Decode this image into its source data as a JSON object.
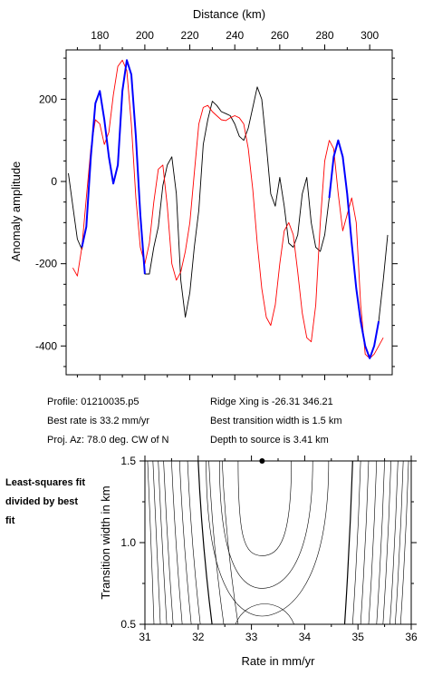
{
  "chart_data": [
    {
      "type": "line",
      "xlabel": "Distance (km)",
      "ylabel": "Anomaly amplitude",
      "xlim": [
        165,
        310
      ],
      "ylim": [
        -470,
        320
      ],
      "xticks": [
        180,
        200,
        220,
        240,
        260,
        280,
        300
      ],
      "yticks": [
        200,
        0,
        -200,
        -400
      ],
      "grid": false,
      "series": [
        {
          "color": "#000000",
          "x": [
            166,
            168,
            170,
            172,
            174,
            176,
            178,
            180,
            182,
            184,
            186,
            188,
            190,
            192,
            194,
            196,
            198,
            200,
            202,
            204,
            206,
            208,
            210,
            212,
            214,
            216,
            218,
            220,
            222,
            224,
            226,
            228,
            230,
            232,
            234,
            236,
            238,
            240,
            242,
            244,
            246,
            248,
            250,
            252,
            254,
            256,
            258,
            260,
            262,
            264,
            266,
            268,
            270,
            272,
            274,
            276,
            278,
            280,
            282,
            284,
            286,
            288,
            290,
            292,
            294,
            296,
            298,
            300,
            302,
            304,
            306,
            308
          ],
          "y": [
            20,
            -60,
            -140,
            -165,
            -110,
            60,
            190,
            220,
            150,
            60,
            -5,
            40,
            220,
            295,
            260,
            110,
            -80,
            -225,
            -225,
            -160,
            -110,
            -10,
            40,
            60,
            -30,
            -240,
            -330,
            -270,
            -160,
            -70,
            90,
            150,
            195,
            185,
            170,
            165,
            160,
            140,
            110,
            100,
            130,
            180,
            230,
            200,
            90,
            -30,
            -60,
            10,
            -60,
            -150,
            -160,
            -130,
            -30,
            10,
            -100,
            -160,
            -170,
            -130,
            -40,
            60,
            100,
            60,
            -30,
            -150,
            -260,
            -340,
            -400,
            -430,
            -400,
            -340,
            -240,
            -130
          ]
        },
        {
          "color": "#ff0000",
          "x": [
            168,
            170,
            172,
            174,
            176,
            178,
            180,
            182,
            184,
            186,
            188,
            190,
            192,
            194,
            196,
            198,
            200,
            202,
            204,
            206,
            208,
            210,
            212,
            214,
            216,
            218,
            220,
            222,
            224,
            226,
            228,
            230,
            232,
            234,
            236,
            238,
            240,
            242,
            244,
            246,
            248,
            250,
            252,
            254,
            256,
            258,
            260,
            262,
            264,
            266,
            268,
            270,
            272,
            274,
            276,
            278,
            280,
            282,
            284,
            286,
            288,
            290,
            292,
            294,
            296,
            298,
            300,
            302,
            304,
            306
          ],
          "y": [
            -210,
            -230,
            -160,
            -40,
            80,
            150,
            140,
            90,
            120,
            210,
            280,
            295,
            270,
            140,
            -40,
            -160,
            -200,
            -150,
            -50,
            30,
            40,
            -60,
            -200,
            -240,
            -220,
            -170,
            -100,
            20,
            140,
            180,
            185,
            170,
            160,
            150,
            148,
            155,
            160,
            155,
            140,
            80,
            -20,
            -150,
            -260,
            -330,
            -350,
            -300,
            -200,
            -120,
            -100,
            -130,
            -220,
            -320,
            -380,
            -390,
            -300,
            -100,
            50,
            100,
            80,
            -30,
            -120,
            -80,
            -40,
            -100,
            -300,
            -420,
            -430,
            -420,
            -400,
            -380
          ]
        },
        {
          "color": "#0000ff",
          "x": [
            172,
            174,
            176,
            178,
            180,
            182,
            184,
            186,
            188,
            190,
            192,
            194,
            196,
            198,
            200
          ],
          "y": [
            -160,
            -110,
            60,
            190,
            220,
            150,
            60,
            -5,
            40,
            220,
            295,
            260,
            110,
            -80,
            -225
          ]
        },
        {
          "color": "#0000ff",
          "x": [
            282,
            284,
            286,
            288,
            290,
            292,
            294,
            296,
            298,
            300,
            302,
            304
          ],
          "y": [
            -40,
            60,
            100,
            60,
            -30,
            -150,
            -260,
            -340,
            -400,
            -430,
            -400,
            -340
          ]
        }
      ]
    },
    {
      "type": "contour",
      "xlabel": "Rate in mm/yr",
      "ylabel": "Transition width in km",
      "xlim": [
        31,
        36
      ],
      "ylim": [
        0.5,
        1.5
      ],
      "xticks": [
        31,
        32,
        33,
        34,
        35,
        36
      ],
      "yticks": [
        0.5,
        1.0,
        1.5
      ],
      "best_fit": {
        "x": 33.2,
        "y": 1.5
      }
    }
  ],
  "info": {
    "profile": "Profile: 01210035.p5",
    "best_rate": "Best rate is 33.2 mm/yr",
    "proj_az": "Proj. Az: 78.0 deg. CW of N",
    "ridge_xing": "Ridge Xing is -26.31 346.21",
    "best_width": "Best transition width is 1.5 km",
    "depth": "Depth to source is   3.41 km"
  },
  "side_note": "Least-squares fit divided by best fit"
}
